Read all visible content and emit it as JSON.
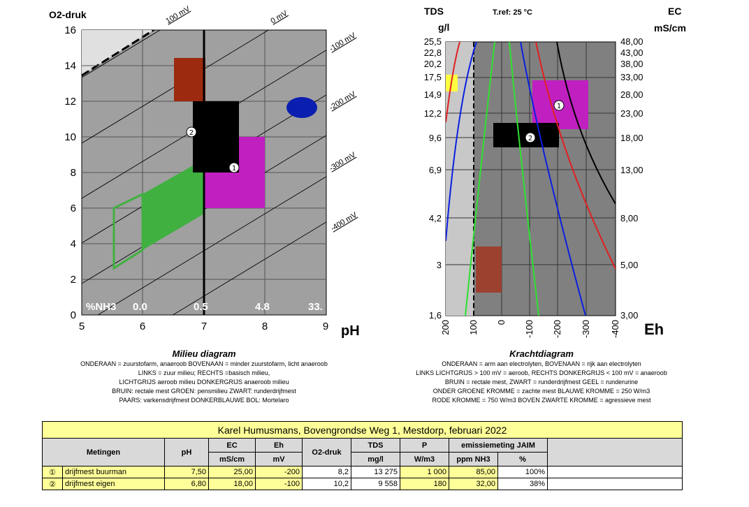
{
  "milieu": {
    "y_title": "O2-druk",
    "y_ticks": [
      "0",
      "2",
      "4",
      "6",
      "8",
      "10",
      "12",
      "14",
      "16"
    ],
    "x_ticks": [
      "5",
      "6",
      "7",
      "8",
      "9"
    ],
    "x_label": "pH",
    "line_labels": [
      "100 mV",
      "0 mV",
      "-100 mV",
      "-200 mV",
      "-300 mV",
      "-400 mV"
    ],
    "nh3_labels": [
      "%NH3",
      "0.0",
      "0.5",
      "4.8",
      "33."
    ],
    "markers": [
      "1",
      "2"
    ],
    "caption_title": "Milieu diagram",
    "caption_lines": [
      "ONDERAAN = zuurstofarm, anaeroob    BOVENAAN = minder zuurstofarm, licht anaeroob",
      "LINKS = zuur milieu; RECHTS =basisch milieu,",
      "LICHTGRIJS  aeroob milieu   DONKERGRIJS anaeroob milieu",
      "BRUIN: rectale mest      GROEN: pensmilieu       ZWART: runderdrijfmest",
      "PAARS: varkensdrijfmest      DONKERBLAUWE BOL: Mortelaro"
    ]
  },
  "kracht": {
    "left_title": "TDS",
    "left_unit": "g/l",
    "ref": "T.ref: 25 °C",
    "right_title": "EC",
    "right_unit": "mS/cm",
    "left_ticks": [
      "25,5",
      "22,8",
      "20,2",
      "17,5",
      "14,9",
      "12,2",
      "9,6",
      "6,9",
      "4,2",
      "3",
      "1,6"
    ],
    "right_ticks": [
      "48,00",
      "43,00",
      "38,00",
      "33,00",
      "28,00",
      "23,00",
      "18,00",
      "13,00",
      "8,00",
      "5,00",
      "3,00"
    ],
    "x_ticks": [
      "200",
      "100",
      "0",
      "-100",
      "-200",
      "-300",
      "-400"
    ],
    "x_label": "Eh",
    "markers": [
      "1",
      "2"
    ],
    "caption_title": "Krachtdiagram",
    "caption_lines": [
      "ONDERAAN = arm aan electrolyten, BOVENAAN = rijk aan electrolyten",
      "LINKS LICHTGRIJS > 100 mV = aeroob, RECHTS DONKERGRIJS < 100 mV = anaeroob",
      "BRUIN = rectale mest,  ZWART = runderdrijfmest   GEEL = runderurine",
      "ONDER GROENE KROMME = zachte mest    BLAUWE KROMME = 250 W/m3",
      "RODE KROMME = 750 W/m3    BOVEN ZWARTE KROMME = agressieve mest"
    ]
  },
  "table": {
    "title": "Karel Humusmans, Bovengrondse Weg 1, Mestdorp, februari 2022",
    "headers": {
      "metingen": "Metingen",
      "ph": "pH",
      "ec": "EC",
      "ec_unit": "mS/cm",
      "eh": "Eh",
      "eh_unit": "mV",
      "o2": "O2-druk",
      "tds": "TDS",
      "tds_unit": "mg/l",
      "p": "P",
      "p_unit": "W/m3",
      "emissie": "emissiemeting JAIM",
      "nh3_unit": "ppm NH3",
      "pct_unit": "%"
    },
    "rows": [
      {
        "marker": "①",
        "name": "drijfmest buurman",
        "ph": "7,50",
        "ec": "25,00",
        "eh": "-200",
        "o2": "8,2",
        "tds": "13 275",
        "p": "1 000",
        "nh3": "85,00",
        "pct": "100%"
      },
      {
        "marker": "②",
        "name": "drijfmest eigen",
        "ph": "6,80",
        "ec": "18,00",
        "eh": "-100",
        "o2": "10,2",
        "tds": "9 558",
        "p": "180",
        "nh3": "32,00",
        "pct": "38%"
      }
    ]
  },
  "colors": {
    "bg_light": "#e0e0e0",
    "bg_mid": "#a0a0a0",
    "bg_dark": "#808080",
    "brown": "#9c2a0e",
    "black": "#000000",
    "purple": "#c020c0",
    "green": "#40b040",
    "navy": "#0a1eb0",
    "yellow": "#ffff99"
  }
}
